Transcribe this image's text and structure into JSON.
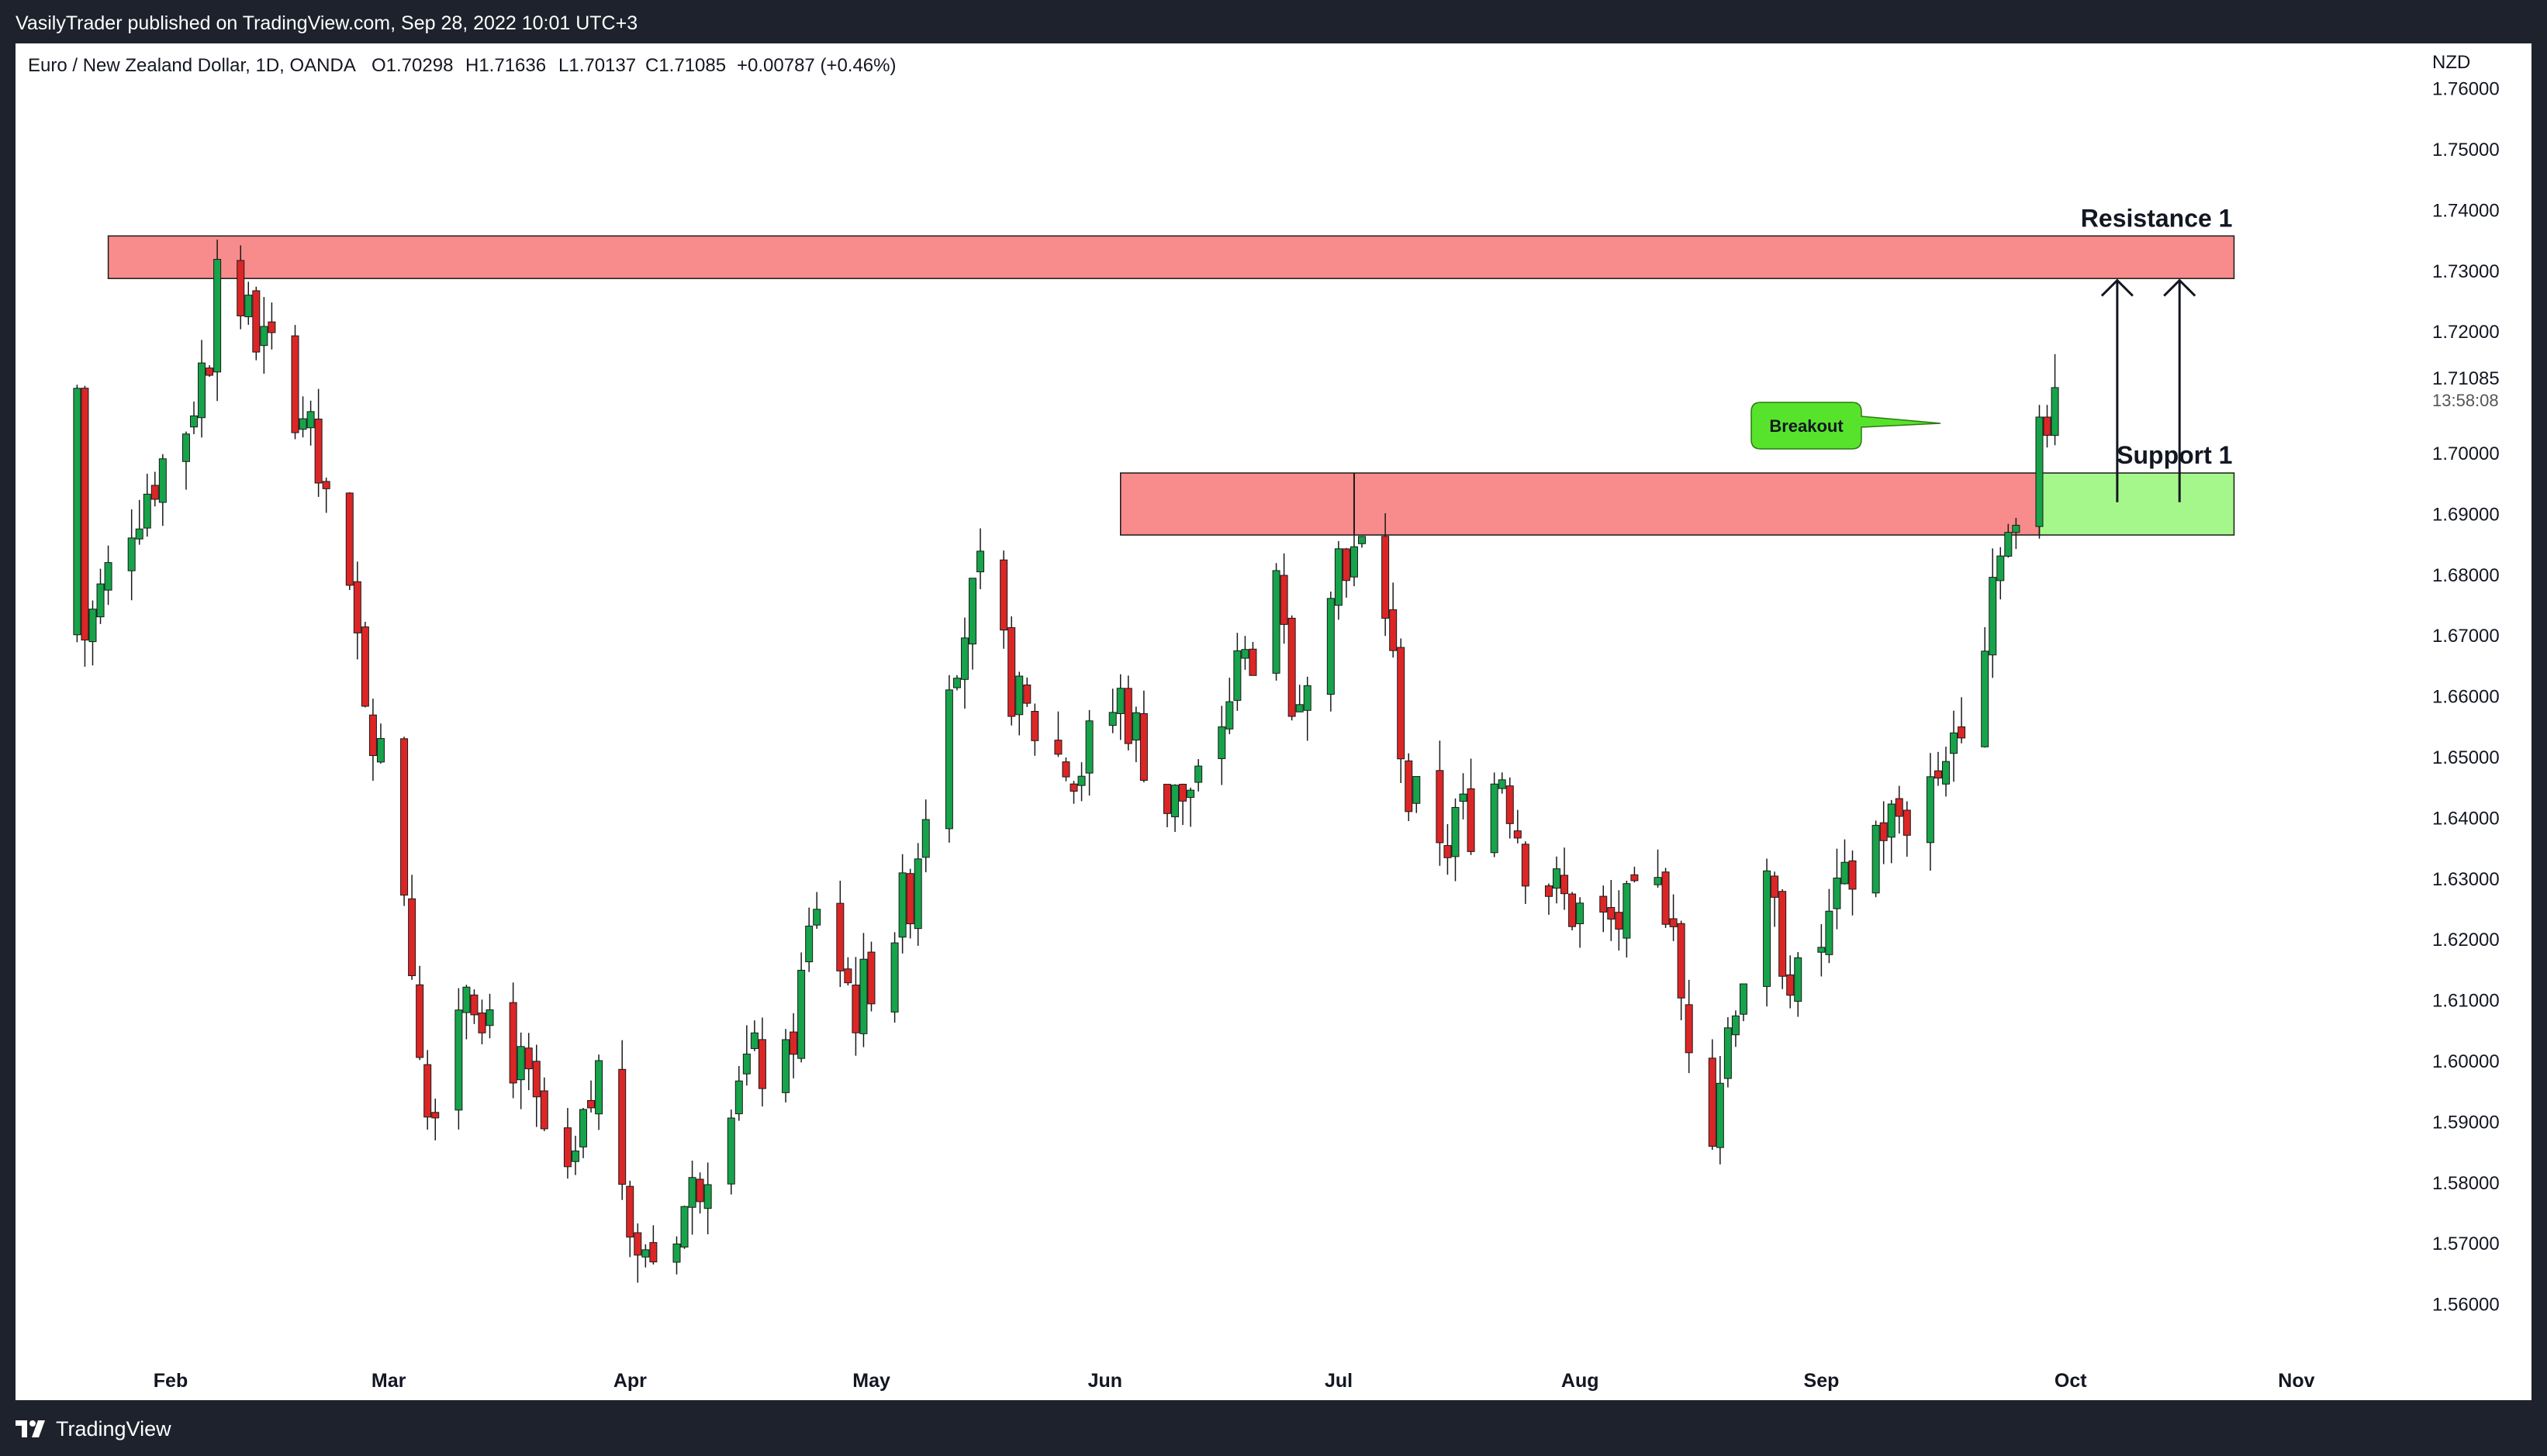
{
  "header": {
    "publisher_line": "VasilyTrader published on TradingView.com, Sep 28, 2022 10:01 UTC+3"
  },
  "footer": {
    "brand": "TradingView"
  },
  "chart_data": {
    "type": "candlestick",
    "legend": {
      "symbol_line": "Euro / New Zealand Dollar, 1D, OANDA",
      "open": "O1.70298",
      "high": "H1.71636",
      "low": "L1.70137",
      "close": "C1.71085",
      "change": "+0.00787 (+0.46%)"
    },
    "currency_label": "NZD",
    "y_axis": {
      "ylim": [
        1.555,
        1.7635
      ],
      "ticks": [
        "1.76000",
        "1.75000",
        "1.74000",
        "1.73000",
        "1.72000",
        "1.70000",
        "1.69000",
        "1.68000",
        "1.67000",
        "1.66000",
        "1.65000",
        "1.64000",
        "1.63000",
        "1.62000",
        "1.61000",
        "1.60000",
        "1.59000",
        "1.58000",
        "1.57000",
        "1.56000"
      ],
      "last_price": "1.71085",
      "countdown": "13:58:08"
    },
    "x_axis": {
      "tick_labels": [
        {
          "label": "Feb",
          "date": "2022-02-01"
        },
        {
          "label": "Mar",
          "date": "2022-03-01"
        },
        {
          "label": "Apr",
          "date": "2022-04-01"
        },
        {
          "label": "May",
          "date": "2022-05-02"
        },
        {
          "label": "Jun",
          "date": "2022-06-01"
        },
        {
          "label": "Jul",
          "date": "2022-07-01"
        },
        {
          "label": "Aug",
          "date": "2022-08-01"
        },
        {
          "label": "Sep",
          "date": "2022-09-01"
        },
        {
          "label": "Oct",
          "date": "2022-10-03"
        },
        {
          "label": "Nov",
          "date": "2022-11-01"
        }
      ]
    },
    "colors": {
      "up": "#16a34a",
      "down": "#dc2626",
      "zone_red": "#f88b8b",
      "zone_green": "#a6f78b",
      "callout": "#57e32c"
    },
    "close_path": [
      {
        "date": "2022-01-18",
        "close": 1.67
      },
      {
        "date": "2022-01-24",
        "close": 1.69
      },
      {
        "date": "2022-01-31",
        "close": 1.705
      },
      {
        "date": "2022-02-03",
        "close": 1.718
      },
      {
        "date": "2022-02-04",
        "close": 1.733
      },
      {
        "date": "2022-02-08",
        "close": 1.722
      },
      {
        "date": "2022-02-15",
        "close": 1.707
      },
      {
        "date": "2022-02-22",
        "close": 1.668
      },
      {
        "date": "2022-02-28",
        "close": 1.63
      },
      {
        "date": "2022-03-03",
        "close": 1.592
      },
      {
        "date": "2022-03-08",
        "close": 1.615
      },
      {
        "date": "2022-03-14",
        "close": 1.601
      },
      {
        "date": "2022-03-21",
        "close": 1.577
      },
      {
        "date": "2022-03-25",
        "close": 1.598
      },
      {
        "date": "2022-03-31",
        "close": 1.566
      },
      {
        "date": "2022-04-06",
        "close": 1.578
      },
      {
        "date": "2022-04-12",
        "close": 1.6
      },
      {
        "date": "2022-04-18",
        "close": 1.598
      },
      {
        "date": "2022-04-22",
        "close": 1.627
      },
      {
        "date": "2022-04-27",
        "close": 1.609
      },
      {
        "date": "2022-05-04",
        "close": 1.628
      },
      {
        "date": "2022-05-09",
        "close": 1.666
      },
      {
        "date": "2022-05-13",
        "close": 1.678
      },
      {
        "date": "2022-05-18",
        "close": 1.658
      },
      {
        "date": "2022-05-25",
        "close": 1.647
      },
      {
        "date": "2022-05-31",
        "close": 1.66
      },
      {
        "date": "2022-06-06",
        "close": 1.642
      },
      {
        "date": "2022-06-10",
        "close": 1.645
      },
      {
        "date": "2022-06-15",
        "close": 1.664
      },
      {
        "date": "2022-06-20",
        "close": 1.675
      },
      {
        "date": "2022-06-22",
        "close": 1.658
      },
      {
        "date": "2022-06-27",
        "close": 1.682
      },
      {
        "date": "2022-06-29",
        "close": 1.684
      },
      {
        "date": "2022-07-04",
        "close": 1.675
      },
      {
        "date": "2022-07-07",
        "close": 1.643
      },
      {
        "date": "2022-07-12",
        "close": 1.637
      },
      {
        "date": "2022-07-15",
        "close": 1.64
      },
      {
        "date": "2022-07-19",
        "close": 1.648
      },
      {
        "date": "2022-07-22",
        "close": 1.634
      },
      {
        "date": "2022-07-27",
        "close": 1.626
      },
      {
        "date": "2022-08-01",
        "close": 1.622
      },
      {
        "date": "2022-08-05",
        "close": 1.624
      },
      {
        "date": "2022-08-09",
        "close": 1.626
      },
      {
        "date": "2022-08-11",
        "close": 1.61
      },
      {
        "date": "2022-08-15",
        "close": 1.592
      },
      {
        "date": "2022-08-18",
        "close": 1.612
      },
      {
        "date": "2022-08-22",
        "close": 1.626
      },
      {
        "date": "2022-08-26",
        "close": 1.612
      },
      {
        "date": "2022-08-31",
        "close": 1.625
      },
      {
        "date": "2022-09-05",
        "close": 1.638
      },
      {
        "date": "2022-09-09",
        "close": 1.641
      },
      {
        "date": "2022-09-14",
        "close": 1.65
      },
      {
        "date": "2022-09-19",
        "close": 1.672
      },
      {
        "date": "2022-09-21",
        "close": 1.688
      },
      {
        "date": "2022-09-23",
        "close": 1.685
      },
      {
        "date": "2022-09-26",
        "close": 1.706
      },
      {
        "date": "2022-09-27",
        "close": 1.703
      },
      {
        "date": "2022-09-28",
        "close": 1.71085
      }
    ],
    "last_candles": [
      {
        "date": "2022-09-26",
        "open": 1.688,
        "high": 1.708,
        "low": 1.686,
        "close": 1.706
      },
      {
        "date": "2022-09-27",
        "open": 1.706,
        "high": 1.708,
        "low": 1.701,
        "close": 1.703
      },
      {
        "date": "2022-09-28",
        "open": 1.70298,
        "high": 1.71636,
        "low": 1.70137,
        "close": 1.71085
      }
    ],
    "zones": [
      {
        "name": "resistance-zone",
        "label": "Resistance 1",
        "from": "2022-01-21",
        "to": "2022-10-21",
        "low": 1.7288,
        "high": 1.7358
      },
      {
        "name": "support-zone-red",
        "label": "",
        "from": "2022-05-31",
        "to": "2022-09-26",
        "low": 1.6866,
        "high": 1.6968
      },
      {
        "name": "support-zone-green",
        "label": "Support 1",
        "from": "2022-09-26",
        "to": "2022-10-21",
        "low": 1.6866,
        "high": 1.6968
      }
    ],
    "annotations": {
      "callout_text": "Breakout",
      "target_arrows": [
        {
          "date": "2022-10-06",
          "from": 1.692,
          "to": 1.7285
        },
        {
          "date": "2022-10-14",
          "from": 1.692,
          "to": 1.7285
        }
      ],
      "marker_line": {
        "date": "2022-06-30",
        "from": 1.6868,
        "to": 1.6968
      }
    }
  }
}
